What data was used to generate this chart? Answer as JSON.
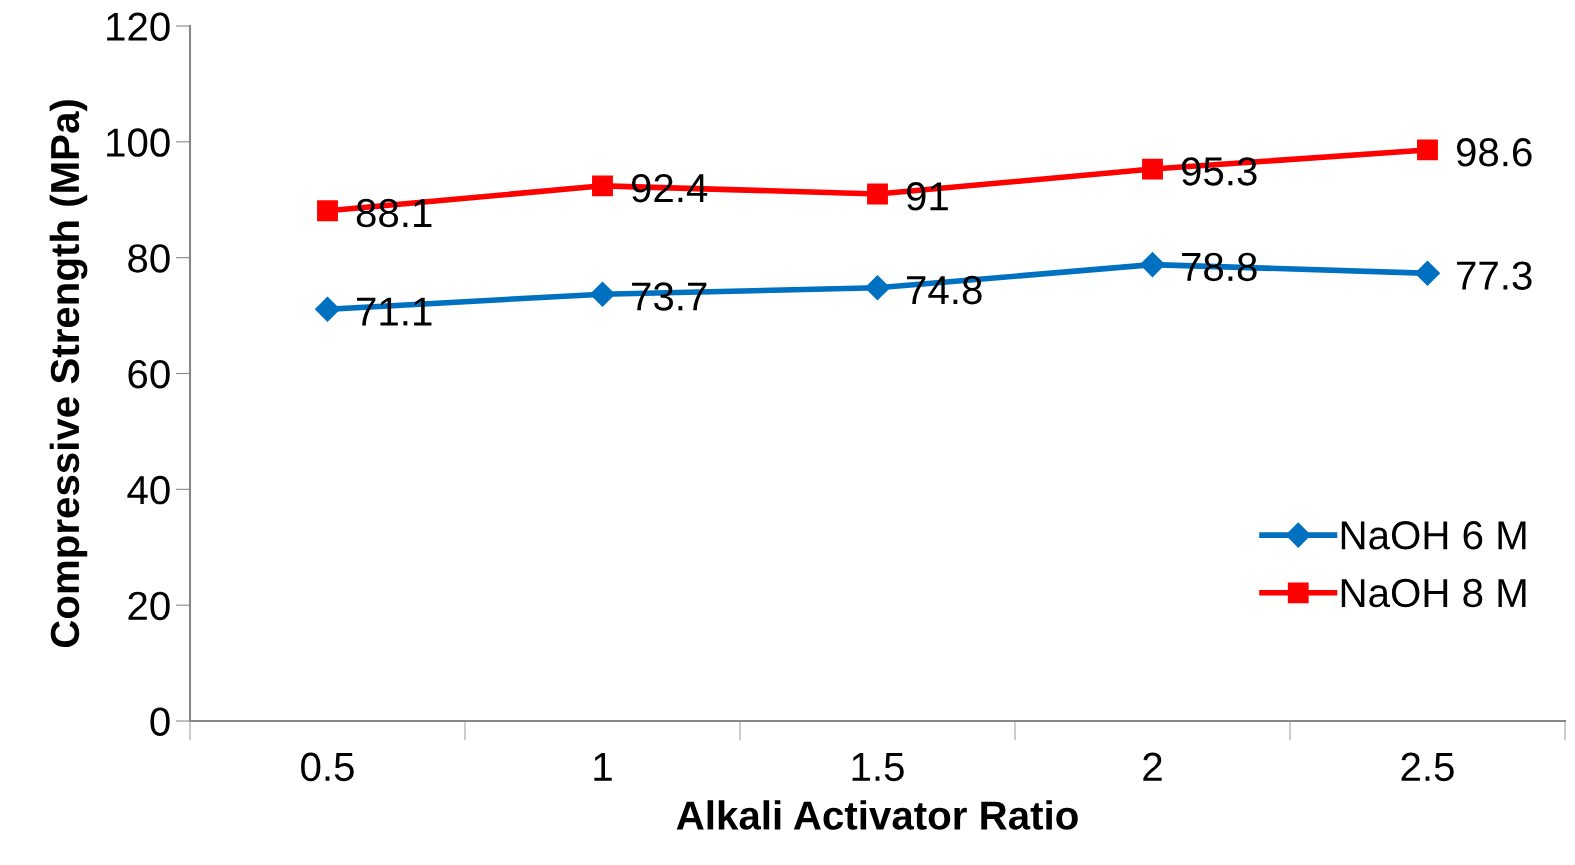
{
  "chart_data": {
    "type": "line",
    "xlabel": "Alkali Activator Ratio",
    "ylabel": "Compressive Strength (MPa)",
    "categories": [
      "0.5",
      "1",
      "1.5",
      "2",
      "2.5"
    ],
    "series": [
      {
        "name": "NaOH 6 M",
        "color": "#0070c0",
        "marker": "diamond",
        "values": [
          71.1,
          73.7,
          74.8,
          78.8,
          77.3
        ]
      },
      {
        "name": "NaOH 8 M",
        "color": "#ff0000",
        "marker": "square",
        "values": [
          88.1,
          92.4,
          91,
          95.3,
          98.6
        ]
      }
    ],
    "ylim": [
      0,
      120
    ],
    "yticks": [
      0,
      20,
      40,
      60,
      80,
      100,
      120
    ],
    "grid": false,
    "legend": "bottom right",
    "data_labels": true,
    "line_style": "solid"
  }
}
